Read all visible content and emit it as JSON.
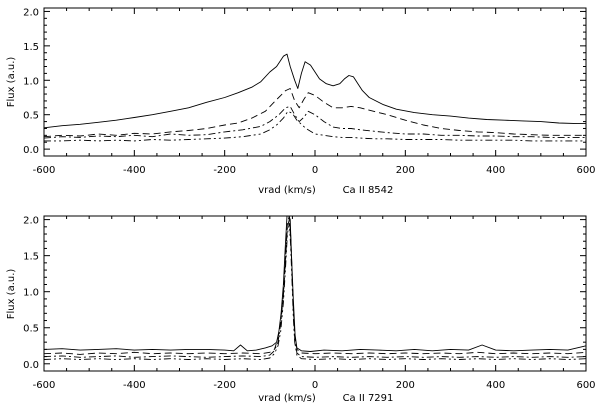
{
  "chart_data": [
    {
      "type": "line",
      "title": "",
      "xlabel": "vrad (km/s)",
      "line_label": "Ca II 8542",
      "ylabel": "Flux (a.u.)",
      "xlim": [
        -600,
        600
      ],
      "ylim": [
        -0.1,
        2.05
      ],
      "xticks": [
        "-600",
        "-400",
        "-200",
        "0",
        "200",
        "400",
        "600"
      ],
      "xtick_values": [
        -600,
        -400,
        -200,
        0,
        200,
        400,
        600
      ],
      "yticks": [
        "0.0",
        "0.5",
        "1.0",
        "1.5",
        "2.0"
      ],
      "ytick_values": [
        0.0,
        0.5,
        1.0,
        1.5,
        2.0
      ],
      "grid": false,
      "series": [
        {
          "style": "solid",
          "x": [
            -600,
            -560,
            -520,
            -480,
            -440,
            -400,
            -360,
            -320,
            -280,
            -240,
            -200,
            -170,
            -140,
            -120,
            -100,
            -85,
            -70,
            -62,
            -55,
            -45,
            -38,
            -30,
            -22,
            -10,
            0,
            10,
            25,
            40,
            55,
            65,
            75,
            85,
            95,
            105,
            120,
            150,
            180,
            220,
            260,
            300,
            340,
            380,
            420,
            460,
            500,
            540,
            580,
            600
          ],
          "y": [
            0.31,
            0.34,
            0.36,
            0.39,
            0.42,
            0.46,
            0.5,
            0.55,
            0.6,
            0.68,
            0.75,
            0.82,
            0.9,
            0.98,
            1.12,
            1.2,
            1.35,
            1.38,
            1.2,
            1.0,
            0.88,
            1.1,
            1.27,
            1.22,
            1.12,
            1.02,
            0.95,
            0.92,
            0.95,
            1.02,
            1.07,
            1.05,
            0.95,
            0.85,
            0.75,
            0.65,
            0.58,
            0.53,
            0.5,
            0.48,
            0.45,
            0.43,
            0.42,
            0.41,
            0.4,
            0.38,
            0.37,
            0.37
          ]
        },
        {
          "style": "dashed",
          "x": [
            -600,
            -560,
            -520,
            -480,
            -440,
            -400,
            -360,
            -320,
            -280,
            -240,
            -200,
            -170,
            -140,
            -110,
            -85,
            -65,
            -55,
            -45,
            -35,
            -25,
            -15,
            0,
            20,
            40,
            60,
            80,
            100,
            130,
            160,
            200,
            240,
            280,
            320,
            360,
            400,
            440,
            480,
            520,
            560,
            600
          ],
          "y": [
            0.18,
            0.2,
            0.19,
            0.22,
            0.2,
            0.23,
            0.22,
            0.25,
            0.27,
            0.3,
            0.35,
            0.38,
            0.45,
            0.55,
            0.72,
            0.85,
            0.88,
            0.7,
            0.6,
            0.72,
            0.82,
            0.78,
            0.68,
            0.6,
            0.6,
            0.62,
            0.6,
            0.55,
            0.5,
            0.42,
            0.35,
            0.3,
            0.27,
            0.25,
            0.24,
            0.22,
            0.21,
            0.2,
            0.2,
            0.2
          ]
        },
        {
          "style": "dash-dot",
          "x": [
            -600,
            -560,
            -520,
            -480,
            -440,
            -400,
            -360,
            -320,
            -280,
            -240,
            -200,
            -160,
            -120,
            -100,
            -80,
            -65,
            -55,
            -45,
            -35,
            -25,
            -15,
            0,
            20,
            40,
            60,
            80,
            100,
            130,
            160,
            200,
            240,
            280,
            320,
            360,
            400,
            440,
            480,
            520,
            560,
            600
          ],
          "y": [
            0.16,
            0.18,
            0.17,
            0.19,
            0.18,
            0.2,
            0.18,
            0.22,
            0.2,
            0.21,
            0.25,
            0.28,
            0.33,
            0.4,
            0.5,
            0.6,
            0.62,
            0.5,
            0.4,
            0.46,
            0.55,
            0.5,
            0.4,
            0.32,
            0.3,
            0.3,
            0.28,
            0.26,
            0.24,
            0.22,
            0.22,
            0.2,
            0.2,
            0.19,
            0.19,
            0.18,
            0.18,
            0.17,
            0.17,
            0.17
          ]
        },
        {
          "style": "dash-dot-dot",
          "x": [
            -600,
            -560,
            -520,
            -480,
            -440,
            -400,
            -360,
            -320,
            -280,
            -240,
            -200,
            -160,
            -120,
            -100,
            -85,
            -70,
            -60,
            -50,
            -40,
            -30,
            -20,
            -10,
            0,
            20,
            40,
            60,
            80,
            100,
            130,
            160,
            200,
            240,
            280,
            320,
            360,
            400,
            440,
            480,
            520,
            560,
            600
          ],
          "y": [
            0.12,
            0.12,
            0.13,
            0.12,
            0.13,
            0.12,
            0.14,
            0.13,
            0.14,
            0.15,
            0.16,
            0.18,
            0.22,
            0.28,
            0.35,
            0.45,
            0.55,
            0.52,
            0.42,
            0.36,
            0.3,
            0.26,
            0.22,
            0.2,
            0.18,
            0.17,
            0.17,
            0.16,
            0.15,
            0.15,
            0.14,
            0.14,
            0.14,
            0.13,
            0.13,
            0.13,
            0.13,
            0.12,
            0.12,
            0.12,
            0.12
          ]
        }
      ]
    },
    {
      "type": "line",
      "title": "",
      "xlabel": "vrad (km/s)",
      "line_label": "Ca II 7291",
      "ylabel": "Flux (a.u.)",
      "xlim": [
        -600,
        600
      ],
      "ylim": [
        -0.1,
        2.05
      ],
      "xticks": [
        "-600",
        "-400",
        "-200",
        "0",
        "200",
        "400",
        "600"
      ],
      "xtick_values": [
        -600,
        -400,
        -200,
        0,
        200,
        400,
        600
      ],
      "yticks": [
        "0.0",
        "0.5",
        "1.0",
        "1.5",
        "2.0"
      ],
      "ytick_values": [
        0.0,
        0.5,
        1.0,
        1.5,
        2.0
      ],
      "grid": false,
      "series": [
        {
          "style": "solid",
          "x": [
            -600,
            -560,
            -520,
            -480,
            -440,
            -400,
            -360,
            -320,
            -280,
            -240,
            -200,
            -180,
            -165,
            -150,
            -130,
            -110,
            -95,
            -85,
            -80,
            -75,
            -70,
            -66,
            -62,
            -58,
            -55,
            -52,
            -48,
            -44,
            -40,
            -30,
            -10,
            20,
            60,
            100,
            140,
            180,
            220,
            260,
            300,
            340,
            370,
            400,
            440,
            480,
            520,
            560,
            600
          ],
          "y": [
            0.2,
            0.21,
            0.19,
            0.2,
            0.21,
            0.19,
            0.2,
            0.19,
            0.2,
            0.2,
            0.19,
            0.18,
            0.26,
            0.18,
            0.19,
            0.22,
            0.25,
            0.3,
            0.45,
            0.7,
            1.1,
            1.6,
            2.05,
            2.1,
            2.0,
            1.5,
            0.9,
            0.4,
            0.22,
            0.18,
            0.17,
            0.19,
            0.18,
            0.2,
            0.19,
            0.18,
            0.2,
            0.18,
            0.2,
            0.19,
            0.26,
            0.19,
            0.18,
            0.19,
            0.2,
            0.19,
            0.25
          ]
        },
        {
          "style": "dashed",
          "x": [
            -600,
            -560,
            -520,
            -480,
            -440,
            -400,
            -360,
            -320,
            -280,
            -240,
            -200,
            -160,
            -120,
            -100,
            -90,
            -82,
            -76,
            -70,
            -65,
            -61,
            -57,
            -54,
            -51,
            -48,
            -45,
            -40,
            -30,
            0,
            40,
            80,
            120,
            160,
            200,
            240,
            280,
            320,
            360,
            400,
            440,
            480,
            520,
            560,
            600
          ],
          "y": [
            0.14,
            0.15,
            0.13,
            0.15,
            0.14,
            0.16,
            0.14,
            0.15,
            0.14,
            0.15,
            0.14,
            0.15,
            0.14,
            0.16,
            0.2,
            0.35,
            0.6,
            1.0,
            1.5,
            1.95,
            2.05,
            1.8,
            1.3,
            0.8,
            0.4,
            0.2,
            0.15,
            0.14,
            0.15,
            0.14,
            0.15,
            0.14,
            0.15,
            0.14,
            0.15,
            0.14,
            0.16,
            0.14,
            0.15,
            0.14,
            0.15,
            0.14,
            0.16
          ]
        },
        {
          "style": "dash-dot",
          "x": [
            -600,
            -560,
            -520,
            -480,
            -440,
            -400,
            -360,
            -320,
            -280,
            -240,
            -200,
            -160,
            -120,
            -100,
            -90,
            -82,
            -76,
            -70,
            -65,
            -61,
            -57,
            -54,
            -51,
            -48,
            -45,
            -40,
            -30,
            0,
            40,
            80,
            120,
            160,
            200,
            240,
            280,
            320,
            360,
            400,
            440,
            480,
            520,
            560,
            600
          ],
          "y": [
            0.1,
            0.11,
            0.09,
            0.1,
            0.11,
            0.09,
            0.1,
            0.11,
            0.1,
            0.09,
            0.1,
            0.11,
            0.1,
            0.12,
            0.18,
            0.3,
            0.55,
            0.95,
            1.45,
            1.9,
            2.0,
            1.75,
            1.25,
            0.75,
            0.35,
            0.15,
            0.1,
            0.09,
            0.1,
            0.09,
            0.1,
            0.09,
            0.1,
            0.09,
            0.1,
            0.09,
            0.1,
            0.09,
            0.1,
            0.09,
            0.1,
            0.09,
            0.1
          ]
        },
        {
          "style": "dash-dot-dot",
          "x": [
            -600,
            -560,
            -520,
            -480,
            -440,
            -400,
            -360,
            -320,
            -280,
            -240,
            -200,
            -160,
            -120,
            -100,
            -90,
            -82,
            -76,
            -70,
            -65,
            -61,
            -57,
            -54,
            -51,
            -48,
            -45,
            -40,
            -30,
            0,
            40,
            80,
            120,
            160,
            200,
            240,
            280,
            320,
            360,
            400,
            440,
            480,
            520,
            560,
            600
          ],
          "y": [
            0.06,
            0.07,
            0.06,
            0.07,
            0.06,
            0.07,
            0.06,
            0.07,
            0.06,
            0.07,
            0.06,
            0.07,
            0.06,
            0.08,
            0.14,
            0.25,
            0.45,
            0.85,
            1.35,
            1.8,
            1.95,
            1.65,
            1.15,
            0.65,
            0.3,
            0.12,
            0.07,
            0.06,
            0.07,
            0.06,
            0.07,
            0.06,
            0.07,
            0.06,
            0.07,
            0.06,
            0.07,
            0.06,
            0.07,
            0.06,
            0.07,
            0.06,
            0.07
          ]
        }
      ]
    }
  ]
}
